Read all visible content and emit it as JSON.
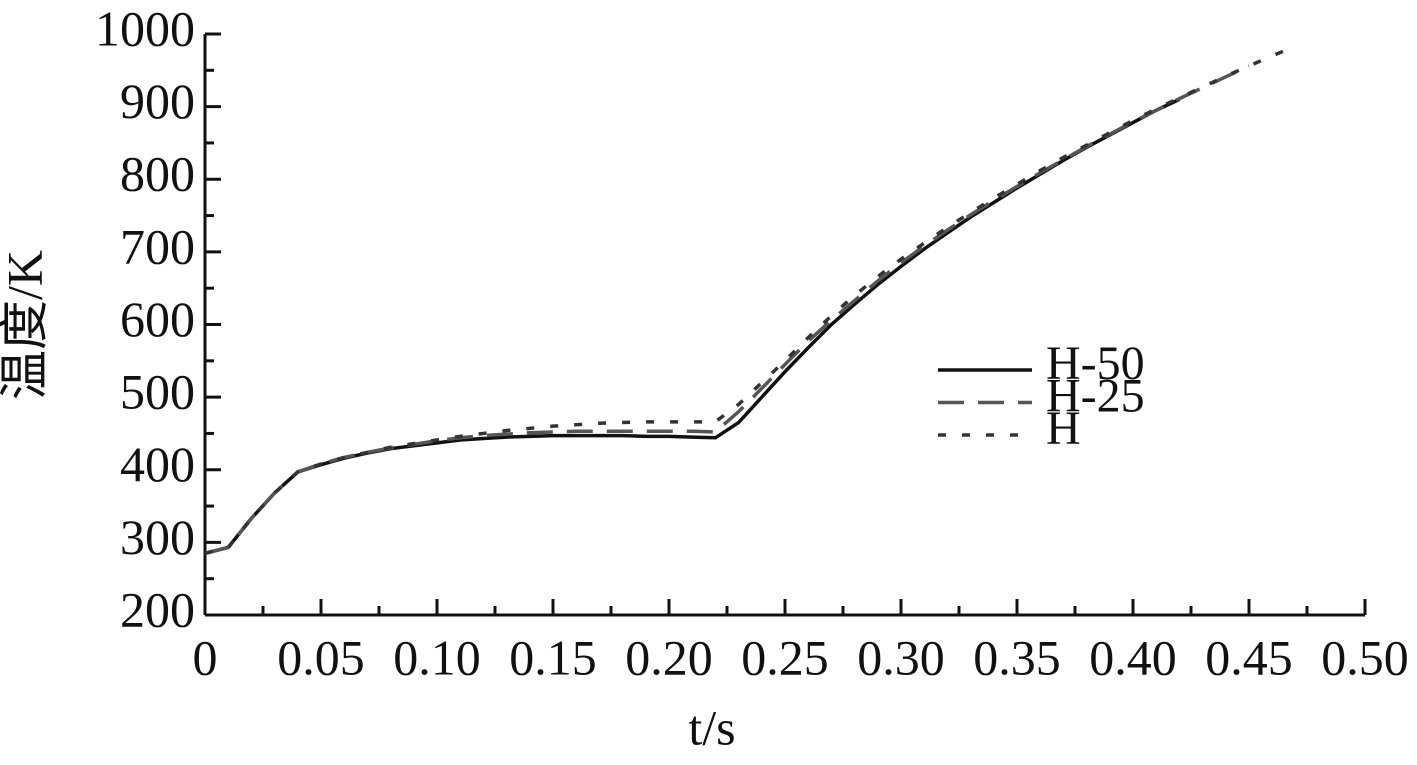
{
  "chart_data": {
    "type": "line",
    "x_label": "t/s",
    "y_label": "温度/K",
    "x": [
      0,
      0.01,
      0.02,
      0.03,
      0.04,
      0.05,
      0.06,
      0.07,
      0.08,
      0.09,
      0.1,
      0.11,
      0.12,
      0.13,
      0.14,
      0.15,
      0.16,
      0.17,
      0.18,
      0.19,
      0.2,
      0.21,
      0.22,
      0.23,
      0.24,
      0.25,
      0.26,
      0.27,
      0.28,
      0.29,
      0.3,
      0.31,
      0.32,
      0.33,
      0.34,
      0.35,
      0.36,
      0.37,
      0.38,
      0.39,
      0.4,
      0.41,
      0.42,
      0.43,
      0.44,
      0.45,
      0.46,
      0.47
    ],
    "series": [
      {
        "name": "H-50",
        "color": "#111111",
        "dash": "solid",
        "values": [
          285,
          293,
          333,
          368,
          397,
          407,
          416,
          423,
          429,
          433,
          437,
          441,
          443,
          445,
          446,
          447,
          447,
          447,
          447,
          446,
          446,
          445,
          444,
          465,
          500,
          535,
          568,
          600,
          628,
          655,
          680,
          704,
          726,
          748,
          768,
          788,
          807,
          826,
          844,
          861,
          878,
          895,
          910,
          null,
          null,
          null,
          null,
          null
        ]
      },
      {
        "name": "H-25",
        "color": "#555555",
        "dash": "dashed",
        "values": [
          285,
          293,
          333,
          368,
          397,
          408,
          417,
          424,
          430,
          435,
          440,
          444,
          447,
          449,
          451,
          452,
          453,
          453,
          453,
          453,
          453,
          453,
          452,
          480,
          512,
          545,
          577,
          606,
          633,
          660,
          685,
          708,
          730,
          751,
          771,
          790,
          809,
          827,
          845,
          862,
          879,
          895,
          911,
          926,
          941,
          956,
          null,
          null
        ]
      },
      {
        "name": "H",
        "color": "#333333",
        "dash": "dotted",
        "values": [
          285,
          293,
          333,
          368,
          397,
          408,
          417,
          424,
          431,
          436,
          441,
          446,
          450,
          454,
          457,
          460,
          462,
          464,
          465,
          466,
          466,
          466,
          466,
          490,
          520,
          550,
          582,
          612,
          640,
          666,
          690,
          712,
          734,
          754,
          774,
          793,
          812,
          830,
          847,
          864,
          881,
          897,
          912,
          927,
          942,
          956,
          970,
          983
        ]
      }
    ],
    "xlim": [
      0,
      0.5
    ],
    "xticks": [
      0,
      0.05,
      {
        "value": 0.1,
        "label": "0.10"
      },
      0.15,
      {
        "value": 0.2,
        "label": "0.20"
      },
      0.25,
      {
        "value": 0.3,
        "label": "0.30"
      },
      0.35,
      {
        "value": 0.4,
        "label": "0.40"
      },
      0.45,
      {
        "value": 0.5,
        "label": "0.50"
      }
    ],
    "ylim": [
      200,
      1000
    ],
    "yticks": [
      200,
      300,
      400,
      500,
      600,
      700,
      800,
      900,
      1000
    ],
    "grid": false
  }
}
